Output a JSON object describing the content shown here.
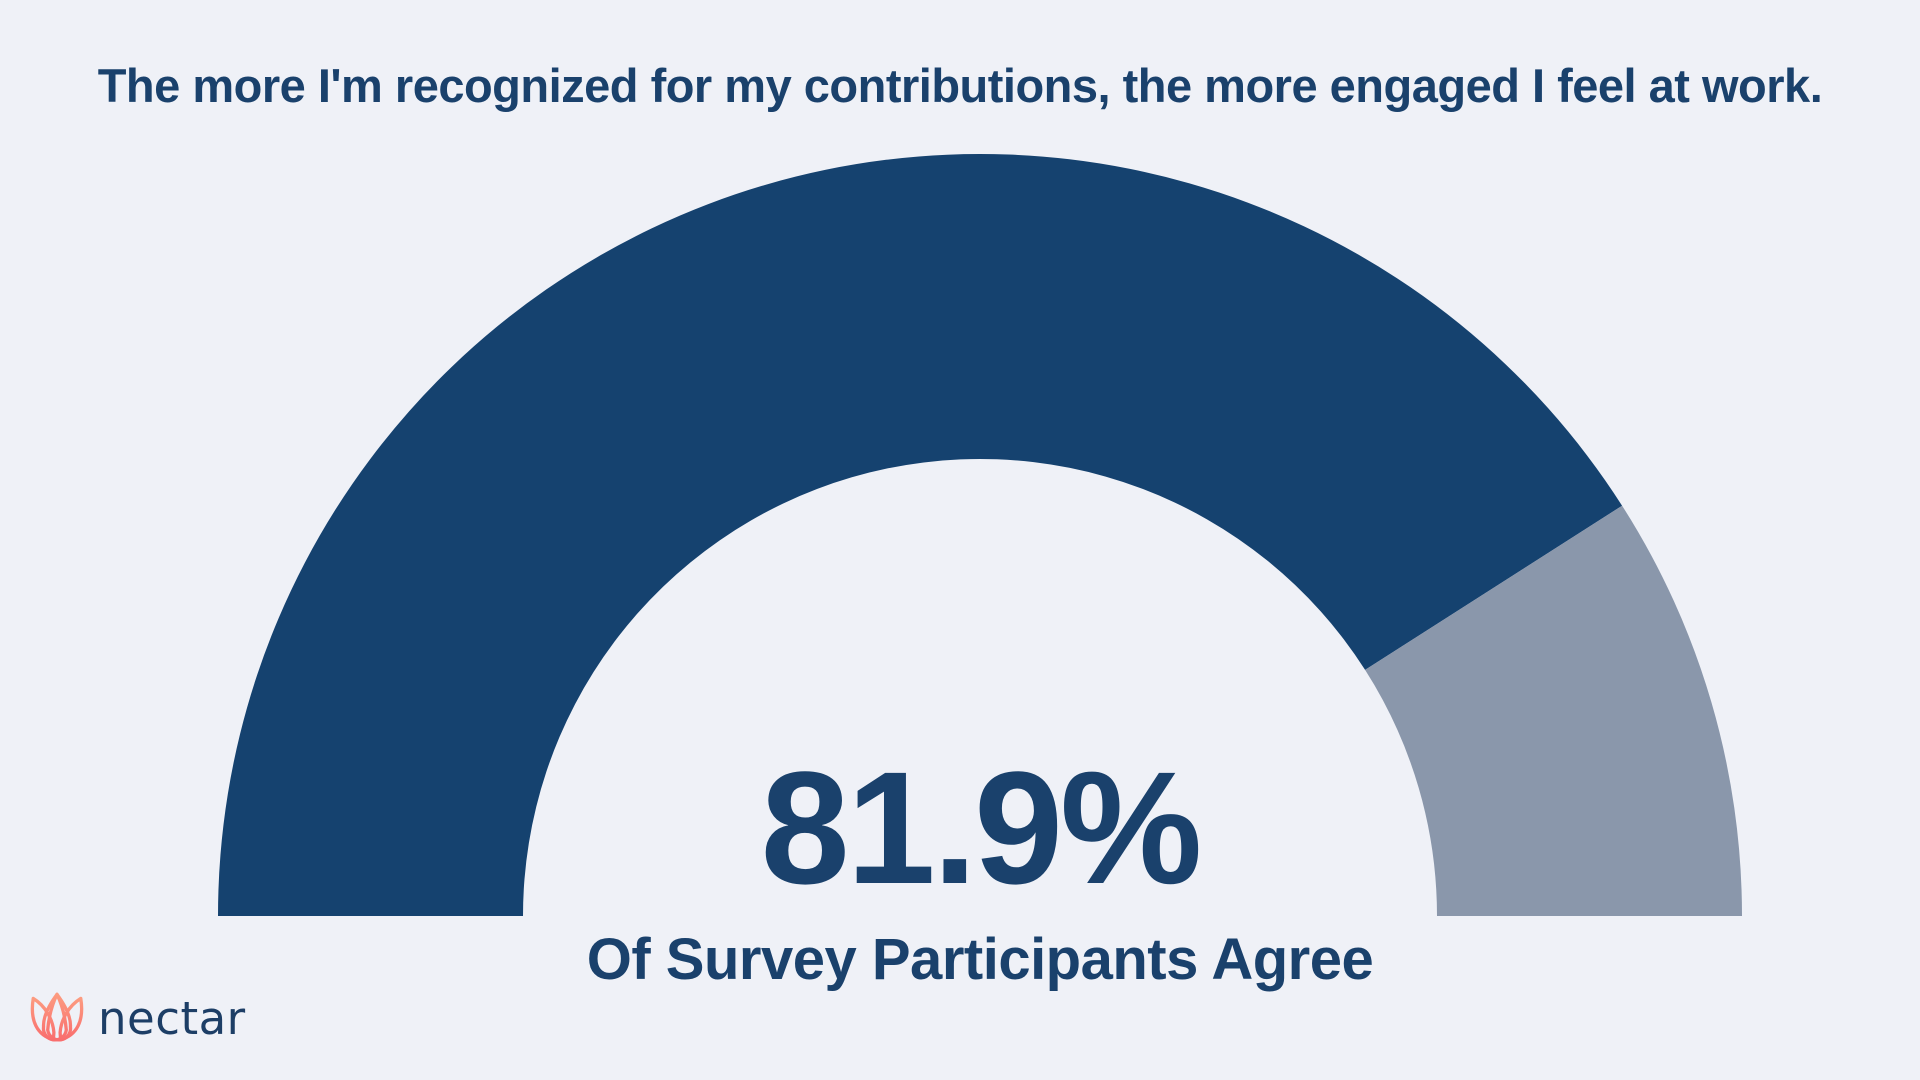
{
  "page": {
    "background_color": "#EFF1F7"
  },
  "header": {
    "title": "The more I'm recognized for my contributions, the more engaged I feel at work."
  },
  "chart_data": {
    "type": "pie",
    "variant": "semicircle-donut-gauge",
    "title": "The more I'm recognized for my contributions, the more engaged I feel at work.",
    "value": 81.9,
    "max": 100,
    "unit": "%",
    "center_label": "81.9%",
    "center_caption": "Of Survey Participants Agree",
    "slices": [
      {
        "label": "Survey participants who agree",
        "value": 81.9,
        "color": "#15426F"
      },
      {
        "label": "Remainder",
        "value": 18.1,
        "color": "#8A97AB"
      }
    ],
    "layout": {
      "start_side": "left",
      "sweep_deg": 180,
      "legend": "none",
      "gridlines": "off"
    }
  },
  "stat": {
    "value_label": "81.9%",
    "caption": "Of Survey Participants Agree"
  },
  "footer": {
    "brand_name": "nectar"
  },
  "theme": {
    "background": "#EFF1F7",
    "gauge_fill": "#15426F",
    "gauge_remainder": "#8A97AB",
    "text_navy": "#1A416C",
    "logo_navy": "#1D3E66",
    "coral_top": "#FC9B80",
    "coral_bottom": "#F96E6E"
  }
}
